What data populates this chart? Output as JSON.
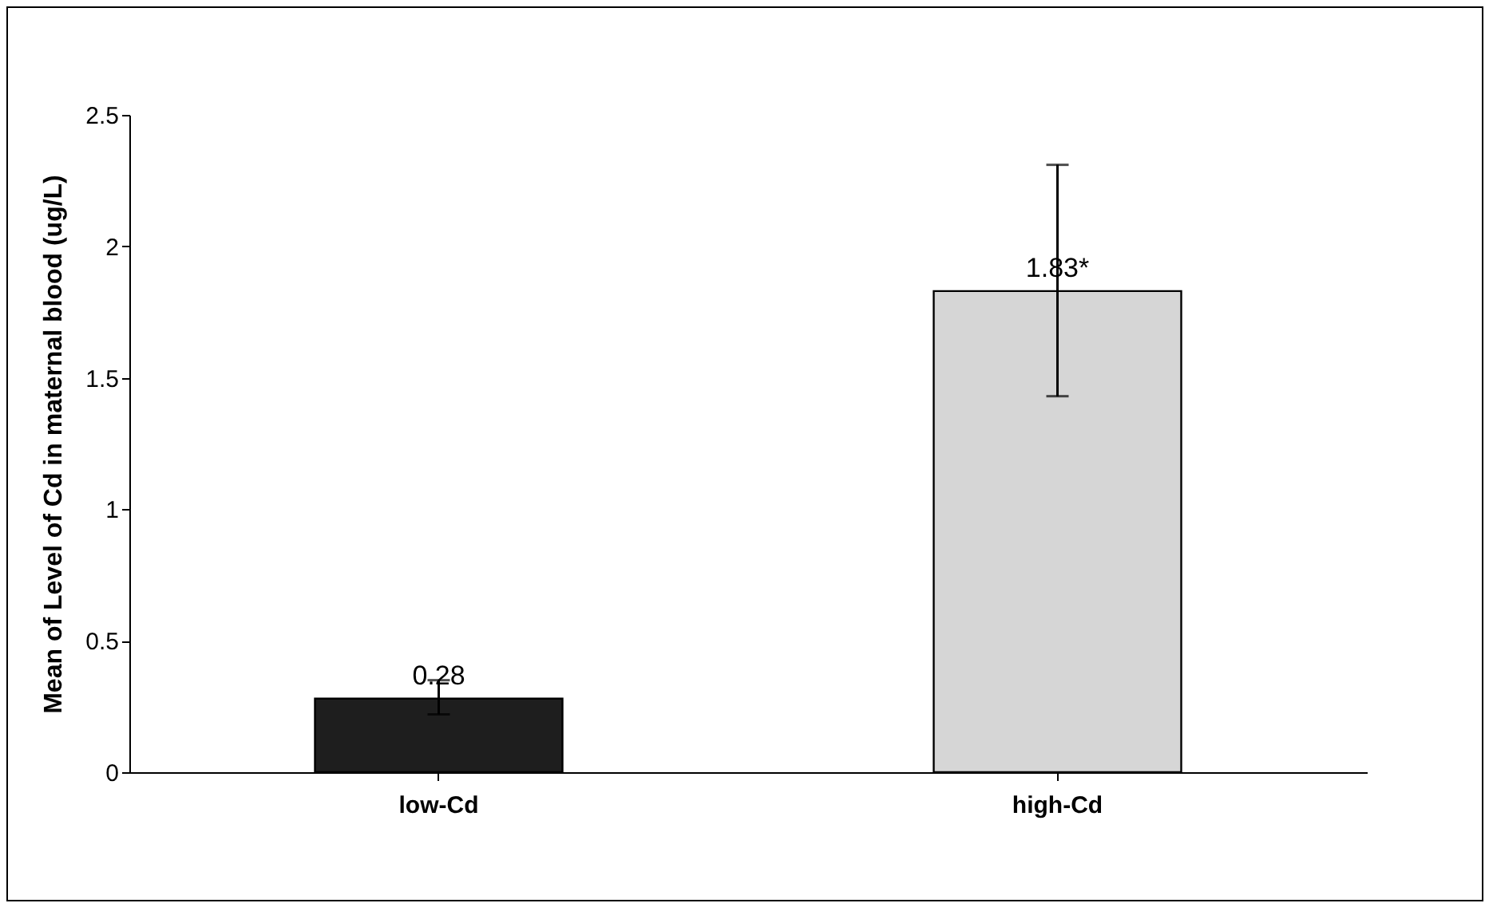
{
  "chart_data": {
    "type": "bar",
    "ylabel": "Mean of Level  of Cd in maternal blood (ug/L)",
    "categories": [
      "low-Cd",
      "high-Cd"
    ],
    "values": [
      0.28,
      1.83
    ],
    "colors": [
      "#1e1e1e",
      "#d6d6d6"
    ],
    "errors": [
      [
        0.22,
        0.35
      ],
      [
        1.43,
        2.31
      ]
    ],
    "value_labels": [
      "0.28",
      "1.83*"
    ],
    "ylim": [
      0,
      2.5
    ],
    "yticks": [
      0,
      0.5,
      1,
      1.5,
      2,
      2.5
    ],
    "grid": false
  }
}
